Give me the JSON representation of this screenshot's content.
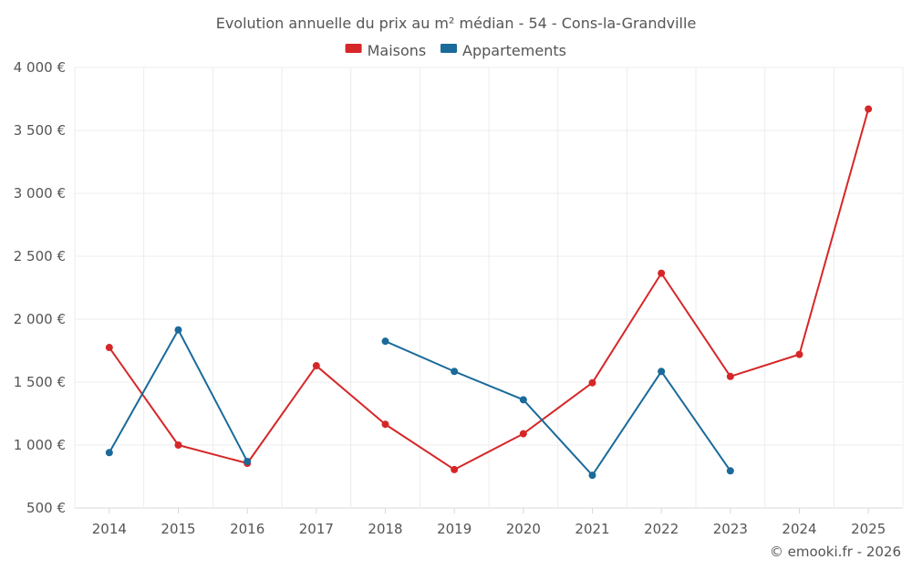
{
  "chart_data": {
    "type": "line",
    "title": "Evolution annuelle du prix au m² médian - 54 - Cons-la-Grandville",
    "categories": [
      "2014",
      "2015",
      "2016",
      "2017",
      "2018",
      "2019",
      "2020",
      "2021",
      "2022",
      "2023",
      "2024",
      "2025"
    ],
    "ylim": [
      500,
      4000
    ],
    "yticks": [
      500,
      1000,
      1500,
      2000,
      2500,
      3000,
      3500,
      4000
    ],
    "ytick_labels": [
      "500 €",
      "1 000 €",
      "1 500 €",
      "2 000 €",
      "2 500 €",
      "3 000 €",
      "3 500 €",
      "4 000 €"
    ],
    "grid": true,
    "legend_position": "top-center",
    "series": [
      {
        "name": "Maisons",
        "color": "#d62728",
        "values": [
          1775,
          1000,
          855,
          1630,
          1165,
          805,
          1090,
          1495,
          2365,
          1545,
          1720,
          3670
        ]
      },
      {
        "name": "Appartements",
        "color": "#1a6a9a",
        "values": [
          940,
          1915,
          870,
          null,
          1825,
          1585,
          1360,
          760,
          1585,
          795,
          null,
          null
        ]
      }
    ]
  },
  "credit": "© emooki.fr - 2026"
}
